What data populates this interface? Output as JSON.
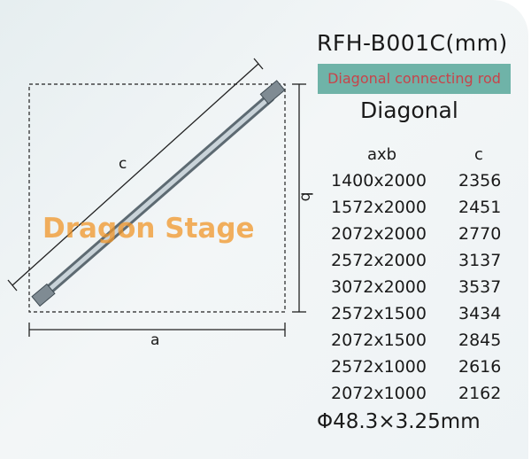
{
  "model": "RFH-B001C(mm)",
  "subtitle": "Diagonal connecting rod",
  "heading": "Diagonal",
  "table": {
    "headers": [
      "axb",
      "c"
    ],
    "rows": [
      {
        "ab": "1400x2000",
        "c": "2356"
      },
      {
        "ab": "1572x2000",
        "c": "2451"
      },
      {
        "ab": "2072x2000",
        "c": "2770"
      },
      {
        "ab": "2572x2000",
        "c": "3137"
      },
      {
        "ab": "3072x2000",
        "c": "3537"
      },
      {
        "ab": "2572x1500",
        "c": "3434"
      },
      {
        "ab": "2072x1500",
        "c": "2845"
      },
      {
        "ab": "2572x1000",
        "c": "2616"
      },
      {
        "ab": "2072x1000",
        "c": "2162"
      }
    ]
  },
  "spec": "Φ48.3×3.25mm",
  "diagram": {
    "label_a": "a",
    "label_b": "b",
    "label_c": "c"
  },
  "watermark": "Dragon Stage",
  "colors": {
    "subtitle_bg": "#6fb3a8",
    "subtitle_text": "#c8434a",
    "watermark": "#f0962a"
  }
}
